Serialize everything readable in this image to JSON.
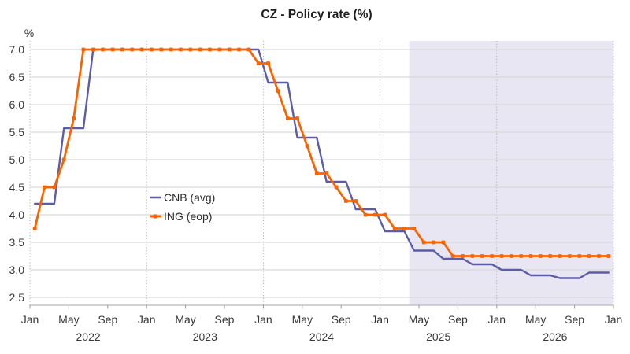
{
  "chart_data": {
    "type": "line",
    "title": "CZ - Policy rate (%)",
    "ylabel": "%",
    "ylim": [
      2.5,
      7.0
    ],
    "y_tick_labels": [
      "7.0",
      "6.5",
      "6.0",
      "5.5",
      "5.0",
      "4.5",
      "4.0",
      "3.5",
      "3.0",
      "2.5"
    ],
    "x_start_label": "Jan 2022",
    "x_end_label": "Jan 2027",
    "x_tick_interval_months": 4,
    "x_tick_labels": [
      "Jan",
      "May",
      "Sep",
      "Jan",
      "May",
      "Sep",
      "Jan",
      "May",
      "Sep",
      "Jan",
      "May",
      "Sep",
      "Jan",
      "May",
      "Sep",
      "Jan"
    ],
    "year_labels": [
      {
        "text": "2022",
        "center_month_index": 6
      },
      {
        "text": "2023",
        "center_month_index": 18
      },
      {
        "text": "2024",
        "center_month_index": 30
      },
      {
        "text": "2025",
        "center_month_index": 42
      },
      {
        "text": "2026",
        "center_month_index": 54
      }
    ],
    "forecast_band": {
      "start_month_index": 39,
      "end_month_index": 60,
      "color": "#e7e6f2"
    },
    "grid": "horizontal gridlines + dotted vertical line at each January",
    "legend_position": "center-left",
    "series": [
      {
        "name": "CNB (avg)",
        "color": "#5c5ca8",
        "markers": false,
        "values": [
          4.2,
          4.2,
          4.2,
          5.57,
          5.57,
          5.57,
          7.0,
          7.0,
          7.0,
          7.0,
          7.0,
          7.0,
          7.0,
          7.0,
          7.0,
          7.0,
          7.0,
          7.0,
          7.0,
          7.0,
          7.0,
          7.0,
          7.0,
          7.0,
          6.4,
          6.4,
          6.4,
          5.4,
          5.4,
          5.4,
          4.6,
          4.6,
          4.6,
          4.1,
          4.1,
          4.1,
          3.7,
          3.7,
          3.7,
          3.35,
          3.35,
          3.35,
          3.2,
          3.2,
          3.2,
          3.1,
          3.1,
          3.1,
          3.0,
          3.0,
          3.0,
          2.9,
          2.9,
          2.9,
          2.85,
          2.85,
          2.85,
          2.95,
          2.95,
          2.95
        ]
      },
      {
        "name": "ING (eop)",
        "color": "#fa6400",
        "markers": true,
        "values": [
          3.75,
          4.5,
          4.5,
          5.0,
          5.75,
          7.0,
          7.0,
          7.0,
          7.0,
          7.0,
          7.0,
          7.0,
          7.0,
          7.0,
          7.0,
          7.0,
          7.0,
          7.0,
          7.0,
          7.0,
          7.0,
          7.0,
          7.0,
          6.75,
          6.75,
          6.25,
          5.75,
          5.75,
          5.25,
          4.75,
          4.75,
          4.5,
          4.25,
          4.25,
          4.0,
          4.0,
          4.0,
          3.75,
          3.75,
          3.75,
          3.5,
          3.5,
          3.5,
          3.25,
          3.25,
          3.25,
          3.25,
          3.25,
          3.25,
          3.25,
          3.25,
          3.25,
          3.25,
          3.25,
          3.25,
          3.25,
          3.25,
          3.25,
          3.25,
          3.25
        ]
      }
    ],
    "style_colors": {
      "gridline": "#d9d9d9",
      "dotted_vertical": "#a8a8a8",
      "axis_line": "#c4c4c4",
      "tick_mark": "#999999"
    }
  }
}
